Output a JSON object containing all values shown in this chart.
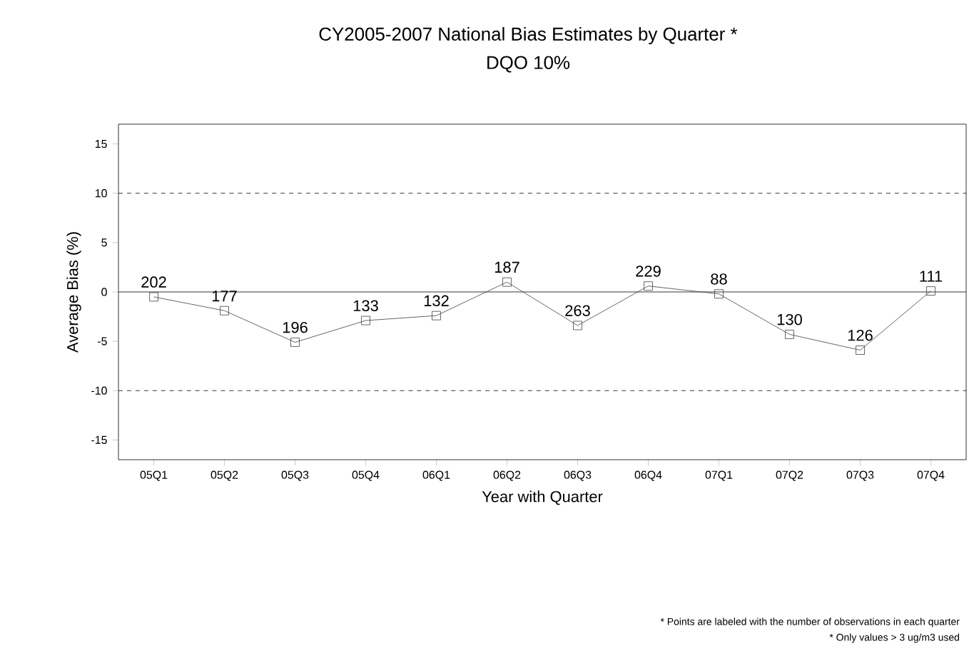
{
  "chart_data": {
    "type": "line",
    "title": "CY2005-2007 National Bias Estimates by Quarter *",
    "subtitle": "DQO 10%",
    "xlabel": "Year with Quarter",
    "ylabel": "Average Bias (%)",
    "categories": [
      "05Q1",
      "05Q2",
      "05Q3",
      "05Q4",
      "06Q1",
      "06Q2",
      "06Q3",
      "06Q4",
      "07Q1",
      "07Q2",
      "07Q3",
      "07Q4"
    ],
    "values": [
      -0.5,
      -1.9,
      -5.1,
      -2.9,
      -2.4,
      1.0,
      -3.4,
      0.6,
      -0.2,
      -4.3,
      -5.9,
      0.1
    ],
    "color": "#404040",
    "marker": "square",
    "line_style": "solid",
    "grid": false,
    "ylim": [
      -17,
      17
    ],
    "yticks": [
      -15,
      -10,
      -5,
      0,
      5,
      10,
      15
    ],
    "ref_lines": [
      {
        "axis": "y",
        "value": 10,
        "line_style": "dashed",
        "color": "#000000"
      },
      {
        "axis": "y",
        "value": 0,
        "line_style": "solid",
        "color": "#000000"
      },
      {
        "axis": "y",
        "value": -10,
        "line_style": "dashed",
        "color": "#000000"
      }
    ],
    "annotations": [
      {
        "text": "202",
        "x": "05Q1",
        "y": -0.5
      },
      {
        "text": "177",
        "x": "05Q2",
        "y": -1.9
      },
      {
        "text": "196",
        "x": "05Q3",
        "y": -5.1
      },
      {
        "text": "133",
        "x": "05Q4",
        "y": -2.9
      },
      {
        "text": "132",
        "x": "06Q1",
        "y": -2.4
      },
      {
        "text": "187",
        "x": "06Q2",
        "y": 1.0
      },
      {
        "text": "263",
        "x": "06Q3",
        "y": -3.4
      },
      {
        "text": "229",
        "x": "06Q4",
        "y": 0.6
      },
      {
        "text": "88",
        "x": "07Q1",
        "y": -0.2
      },
      {
        "text": "130",
        "x": "07Q2",
        "y": -4.3
      },
      {
        "text": "126",
        "x": "07Q3",
        "y": -5.9
      },
      {
        "text": "111",
        "x": "07Q4",
        "y": 0.1
      },
      "* Points are labeled with the number of observations in each quarter",
      "* Only values > 3 ug/m3 used"
    ]
  }
}
